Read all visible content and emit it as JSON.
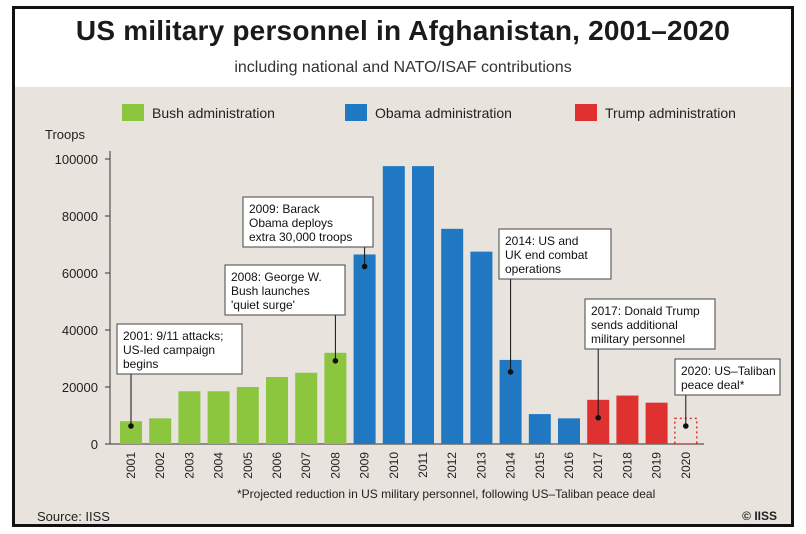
{
  "header": {
    "title": "US military personnel in Afghanistan, 2001–2020",
    "subtitle": "including national and NATO/ISAF contributions"
  },
  "legend": [
    {
      "label": "Bush administration",
      "color": "#8cc63f"
    },
    {
      "label": "Obama administration",
      "color": "#1f78c1"
    },
    {
      "label": "Trump administration",
      "color": "#e03131"
    }
  ],
  "footer": {
    "source": "Source: IISS",
    "logo": "© IISS",
    "footnote": "*Projected reduction in US military personnel, following US–Taliban peace deal"
  },
  "chart_data": {
    "type": "bar",
    "ylabel": "Troops",
    "ylim": [
      0,
      100000
    ],
    "yticks": [
      "0",
      "20000",
      "40000",
      "60000",
      "80000",
      "100000"
    ],
    "categories": [
      "2001",
      "2002",
      "2003",
      "2004",
      "2005",
      "2006",
      "2007",
      "2008",
      "2009",
      "2010",
      "2011",
      "2012",
      "2013",
      "2014",
      "2015",
      "2016",
      "2017",
      "2018",
      "2019",
      "2020"
    ],
    "values": [
      8000,
      9000,
      18500,
      18500,
      20000,
      23500,
      25000,
      32000,
      66500,
      97500,
      97500,
      75500,
      67500,
      29500,
      10500,
      9000,
      15500,
      17000,
      14500,
      9000
    ],
    "administration": [
      "Bush",
      "Bush",
      "Bush",
      "Bush",
      "Bush",
      "Bush",
      "Bush",
      "Bush",
      "Obama",
      "Obama",
      "Obama",
      "Obama",
      "Obama",
      "Obama",
      "Obama",
      "Obama",
      "Trump",
      "Trump",
      "Trump",
      "Trump"
    ],
    "projected": [
      false,
      false,
      false,
      false,
      false,
      false,
      false,
      false,
      false,
      false,
      false,
      false,
      false,
      false,
      false,
      false,
      false,
      false,
      false,
      true
    ],
    "grid": false,
    "legend_position": "top",
    "annotations": [
      {
        "year": "2001",
        "lines": [
          "2001: 9/11 attacks;",
          "US-led campaign",
          "begins"
        ]
      },
      {
        "year": "2008",
        "lines": [
          "2008: George W.",
          "Bush launches",
          "'quiet surge'"
        ]
      },
      {
        "year": "2009",
        "lines": [
          "2009: Barack",
          "Obama deploys",
          "extra 30,000 troops"
        ]
      },
      {
        "year": "2014",
        "lines": [
          "2014: US and",
          "UK end combat",
          "operations"
        ]
      },
      {
        "year": "2017",
        "lines": [
          "2017: Donald Trump",
          "sends additional",
          "military personnel"
        ]
      },
      {
        "year": "2020",
        "lines": [
          "2020: US–Taliban",
          "peace deal*"
        ]
      }
    ]
  }
}
